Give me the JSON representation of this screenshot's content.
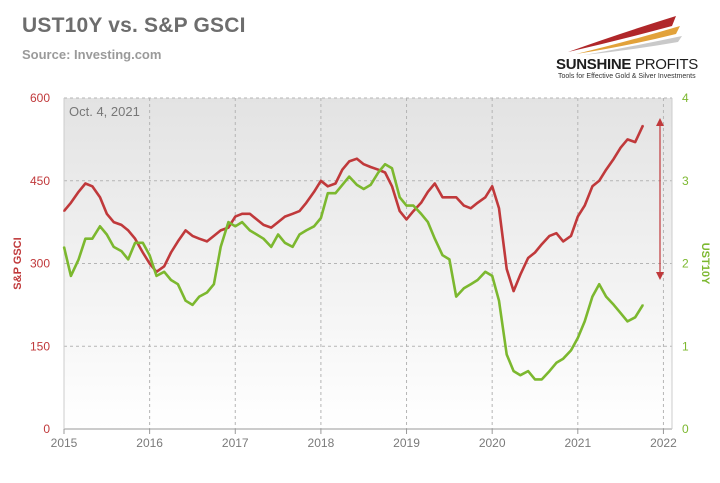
{
  "header": {
    "title": "UST10Y vs. S&P GSCI",
    "source": "Source: Investing.com"
  },
  "logo": {
    "name_bold": "SUNSHINE",
    "name_light": " PROFITS",
    "tagline": "Tools for Effective Gold & Silver Investments"
  },
  "chart_data": {
    "type": "line",
    "annotation": "Oct. 4, 2021",
    "ylabel_left": "S&P GSCI",
    "ylabel_right": "UST10Y",
    "ylim_left": [
      0,
      600
    ],
    "ylim_right": [
      0,
      4
    ],
    "yticks_left": [
      "0",
      "150",
      "300",
      "450",
      "600"
    ],
    "yticks_right": [
      "0",
      "1",
      "2",
      "3",
      "4"
    ],
    "xlim": [
      2015,
      2022.1
    ],
    "xticks": [
      "2015",
      "2016",
      "2017",
      "2018",
      "2019",
      "2020",
      "2021",
      "2022"
    ],
    "grid": true,
    "colors": {
      "gsci": "#c0393b",
      "ust": "#7cb82f",
      "plot_bg_top": "#e6e6e6",
      "plot_bg_bottom": "#ffffff"
    },
    "series": [
      {
        "name": "S&P GSCI",
        "axis": "left",
        "x": [
          2015.0,
          2015.08,
          2015.17,
          2015.25,
          2015.33,
          2015.42,
          2015.5,
          2015.58,
          2015.67,
          2015.75,
          2015.83,
          2015.92,
          2016.0,
          2016.08,
          2016.17,
          2016.25,
          2016.33,
          2016.42,
          2016.5,
          2016.58,
          2016.67,
          2016.75,
          2016.83,
          2016.92,
          2017.0,
          2017.08,
          2017.17,
          2017.25,
          2017.33,
          2017.42,
          2017.5,
          2017.58,
          2017.67,
          2017.75,
          2017.83,
          2017.92,
          2018.0,
          2018.08,
          2018.17,
          2018.25,
          2018.33,
          2018.42,
          2018.5,
          2018.58,
          2018.67,
          2018.75,
          2018.83,
          2018.92,
          2019.0,
          2019.08,
          2019.17,
          2019.25,
          2019.33,
          2019.42,
          2019.5,
          2019.58,
          2019.67,
          2019.75,
          2019.83,
          2019.92,
          2020.0,
          2020.08,
          2020.17,
          2020.25,
          2020.33,
          2020.42,
          2020.5,
          2020.58,
          2020.67,
          2020.75,
          2020.83,
          2020.92,
          2021.0,
          2021.08,
          2021.17,
          2021.25,
          2021.33,
          2021.42,
          2021.5,
          2021.58,
          2021.67,
          2021.76
        ],
        "values": [
          395,
          410,
          430,
          445,
          440,
          420,
          390,
          375,
          370,
          360,
          345,
          320,
          300,
          285,
          295,
          320,
          340,
          360,
          350,
          345,
          340,
          350,
          360,
          365,
          385,
          390,
          390,
          380,
          370,
          365,
          375,
          385,
          390,
          395,
          410,
          430,
          450,
          440,
          445,
          470,
          485,
          490,
          480,
          475,
          470,
          465,
          440,
          395,
          380,
          395,
          410,
          430,
          445,
          420,
          420,
          420,
          405,
          400,
          410,
          420,
          440,
          400,
          290,
          250,
          280,
          310,
          320,
          335,
          350,
          355,
          340,
          350,
          385,
          405,
          440,
          450,
          470,
          490,
          510,
          525,
          520,
          550
        ]
      },
      {
        "name": "UST10Y",
        "axis": "right",
        "x": [
          2015.0,
          2015.08,
          2015.17,
          2015.25,
          2015.33,
          2015.42,
          2015.5,
          2015.58,
          2015.67,
          2015.75,
          2015.83,
          2015.92,
          2016.0,
          2016.08,
          2016.17,
          2016.25,
          2016.33,
          2016.42,
          2016.5,
          2016.58,
          2016.67,
          2016.75,
          2016.83,
          2016.92,
          2017.0,
          2017.08,
          2017.17,
          2017.25,
          2017.33,
          2017.42,
          2017.5,
          2017.58,
          2017.67,
          2017.75,
          2017.83,
          2017.92,
          2018.0,
          2018.08,
          2018.17,
          2018.25,
          2018.33,
          2018.42,
          2018.5,
          2018.58,
          2018.67,
          2018.75,
          2018.83,
          2018.92,
          2019.0,
          2019.08,
          2019.17,
          2019.25,
          2019.33,
          2019.42,
          2019.5,
          2019.58,
          2019.67,
          2019.75,
          2019.83,
          2019.92,
          2020.0,
          2020.08,
          2020.17,
          2020.25,
          2020.33,
          2020.42,
          2020.5,
          2020.58,
          2020.67,
          2020.75,
          2020.83,
          2020.92,
          2021.0,
          2021.08,
          2021.17,
          2021.25,
          2021.33,
          2021.42,
          2021.5,
          2021.58,
          2021.67,
          2021.76
        ],
        "values": [
          2.2,
          1.85,
          2.05,
          2.3,
          2.3,
          2.45,
          2.35,
          2.2,
          2.15,
          2.05,
          2.25,
          2.25,
          2.1,
          1.85,
          1.9,
          1.8,
          1.75,
          1.55,
          1.5,
          1.6,
          1.65,
          1.75,
          2.2,
          2.5,
          2.45,
          2.5,
          2.4,
          2.35,
          2.3,
          2.2,
          2.35,
          2.25,
          2.2,
          2.35,
          2.4,
          2.45,
          2.55,
          2.85,
          2.85,
          2.95,
          3.05,
          2.95,
          2.9,
          2.95,
          3.1,
          3.2,
          3.15,
          2.8,
          2.7,
          2.7,
          2.6,
          2.5,
          2.3,
          2.1,
          2.05,
          1.6,
          1.7,
          1.75,
          1.8,
          1.9,
          1.85,
          1.55,
          0.9,
          0.7,
          0.65,
          0.7,
          0.6,
          0.6,
          0.7,
          0.8,
          0.85,
          0.95,
          1.1,
          1.3,
          1.6,
          1.75,
          1.6,
          1.5,
          1.4,
          1.3,
          1.35,
          1.5
        ]
      }
    ]
  }
}
